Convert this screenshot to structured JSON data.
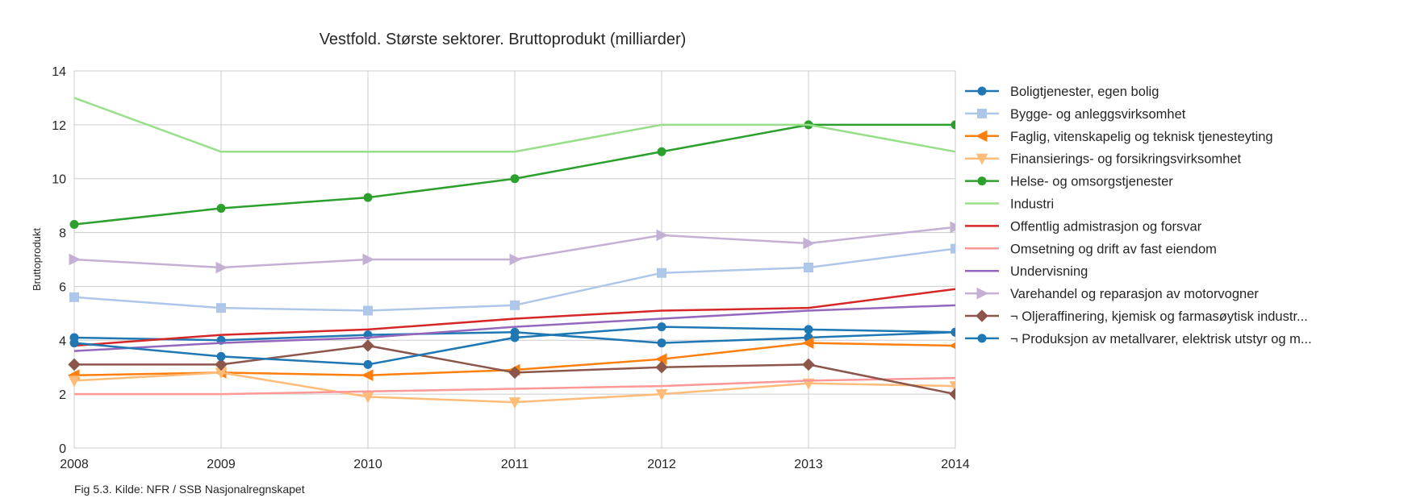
{
  "chart_data": {
    "type": "line",
    "title": "Vestfold. Største sektorer. Bruttoprodukt (milliarder)",
    "ylabel": "Bruttoprodukt",
    "xlabel": "",
    "caption": "Fig 5.3. Kilde: NFR / SSB Nasjonalregnskapet",
    "x": [
      2008,
      2009,
      2010,
      2011,
      2012,
      2013,
      2014
    ],
    "xlim": [
      2008,
      2014
    ],
    "ylim": [
      0,
      14
    ],
    "yticks": [
      0,
      2,
      4,
      6,
      8,
      10,
      12,
      14
    ],
    "xticks": [
      2008,
      2009,
      2010,
      2011,
      2012,
      2013,
      2014
    ],
    "grid": true,
    "legend_position": "right",
    "series": [
      {
        "name": "Boligtjenester, egen bolig",
        "color": "#1f77b4",
        "marker": "circle",
        "values": [
          4.1,
          4.0,
          4.2,
          4.3,
          3.9,
          4.1,
          4.3
        ]
      },
      {
        "name": "Bygge- og anleggsvirksomhet",
        "color": "#aec7e8",
        "marker": "square",
        "values": [
          5.6,
          5.2,
          5.1,
          5.3,
          6.5,
          6.7,
          7.4
        ]
      },
      {
        "name": "Faglig, vitenskapelig og teknisk tjenesteyting",
        "color": "#ff7f0e",
        "marker": "triangle-left",
        "values": [
          2.7,
          2.8,
          2.7,
          2.9,
          3.3,
          3.9,
          3.8
        ]
      },
      {
        "name": "Finansierings- og forsikringsvirksomhet",
        "color": "#ffbb78",
        "marker": "triangle-down",
        "values": [
          2.5,
          2.8,
          1.9,
          1.7,
          2.0,
          2.4,
          2.3
        ]
      },
      {
        "name": "Helse- og omsorgstjenester",
        "color": "#2ca02c",
        "marker": "circle",
        "values": [
          8.3,
          8.9,
          9.3,
          10.0,
          11.0,
          12.0,
          12.0
        ]
      },
      {
        "name": "Industri",
        "color": "#98df8a",
        "marker": "none",
        "values": [
          13.0,
          11.0,
          11.0,
          11.0,
          12.0,
          12.0,
          11.0
        ]
      },
      {
        "name": "Offentlig admistrasjon og forsvar",
        "color": "#d62728",
        "marker": "none",
        "values": [
          3.8,
          4.2,
          4.4,
          4.8,
          5.1,
          5.2,
          5.9
        ]
      },
      {
        "name": "Omsetning og drift av fast eiendom",
        "color": "#ff9896",
        "marker": "none",
        "values": [
          2.0,
          2.0,
          2.1,
          2.2,
          2.3,
          2.5,
          2.6
        ]
      },
      {
        "name": "Undervisning",
        "color": "#9467bd",
        "marker": "none",
        "values": [
          3.6,
          3.9,
          4.1,
          4.5,
          4.8,
          5.1,
          5.3
        ]
      },
      {
        "name": "Varehandel og reparasjon av motorvogner",
        "color": "#c5b0d5",
        "marker": "triangle-right",
        "values": [
          7.0,
          6.7,
          7.0,
          7.0,
          7.9,
          7.6,
          8.2
        ]
      },
      {
        "name": "¬ Oljeraffinering, kjemisk og farmasøytisk industr...",
        "color": "#8c564b",
        "marker": "diamond",
        "values": [
          3.1,
          3.1,
          3.8,
          2.8,
          3.0,
          3.1,
          2.0
        ]
      },
      {
        "name": "¬ Produksjon av metallvarer, elektrisk utstyr og m...",
        "color": "#1f77b4",
        "marker": "circle",
        "values": [
          3.9,
          3.4,
          3.1,
          4.1,
          4.5,
          4.4,
          4.3
        ]
      }
    ]
  }
}
